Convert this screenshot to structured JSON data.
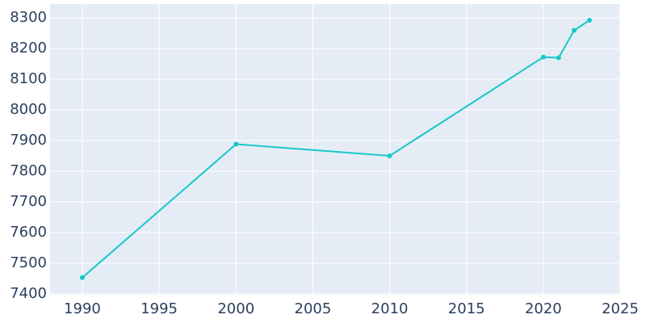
{
  "chart_data": {
    "type": "line",
    "x": [
      1990,
      2000,
      2010,
      2020,
      2021,
      2022,
      2023
    ],
    "series": [
      {
        "color": "#17c8c8",
        "values": [
          7453,
          7888,
          7850,
          8172,
          8170,
          8259,
          8292
        ]
      }
    ],
    "xlim": [
      1987.9,
      2025
    ],
    "xticks": [
      1990,
      1995,
      2000,
      2005,
      2010,
      2015,
      2020,
      2025
    ],
    "ylim": [
      7397,
      8345
    ],
    "yticks": [
      7400,
      7500,
      7600,
      7700,
      7800,
      7900,
      8000,
      8100,
      8200,
      8300
    ],
    "grid": true
  }
}
